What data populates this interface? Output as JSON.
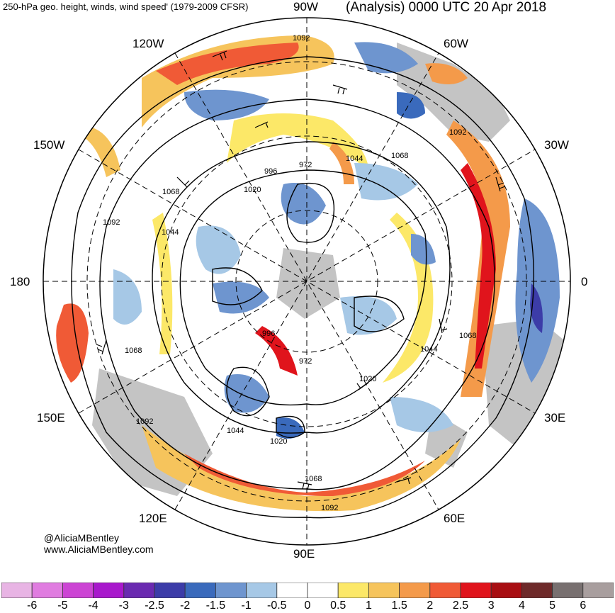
{
  "header": {
    "left_title": "250-hPa geo. height, winds, wind speed' (1979-2009 CFSR)",
    "right_title": "(Analysis) 0000 UTC 20 Apr 2018"
  },
  "map": {
    "projection": "north-polar-stereographic",
    "longitude_labels": {
      "top": "90W",
      "bottom": "90E",
      "left": "180",
      "right": "0",
      "upper_left": "120W",
      "upper_left2": "150W",
      "upper_right": "60W",
      "upper_right2": "30W",
      "lower_left": "150E",
      "lower_left2": "120E",
      "lower_right": "30E",
      "lower_right2": "60E"
    },
    "contour_labels": [
      "1092",
      "1092",
      "1092",
      "1092",
      "1068",
      "1068",
      "1068",
      "1068",
      "1044",
      "1044",
      "1044",
      "1044",
      "1020",
      "1020",
      "1020",
      "996",
      "996",
      "972",
      "972"
    ]
  },
  "credit": {
    "line1": "@AliciaMBentley",
    "line2": "www.AliciaMBentley.com"
  },
  "colorbar": {
    "labels": [
      "-6",
      "-5",
      "-4",
      "-3",
      "-2.5",
      "-2",
      "-1.5",
      "-1",
      "-0.5",
      "0",
      "0.5",
      "1",
      "1.5",
      "2",
      "2.5",
      "3",
      "4",
      "5",
      "6"
    ],
    "colors": [
      "#e8b4e4",
      "#e07ce0",
      "#cc44d4",
      "#a818cc",
      "#6a2ab0",
      "#3c3ca8",
      "#3a6abc",
      "#6e95cf",
      "#a6c8e6",
      "#ffffff",
      "#ffffff",
      "#fce868",
      "#f6c45c",
      "#f49a4a",
      "#f05a36",
      "#e0141c",
      "#a80e12",
      "#6e2a2a",
      "#787070",
      "#a89e9e"
    ]
  }
}
